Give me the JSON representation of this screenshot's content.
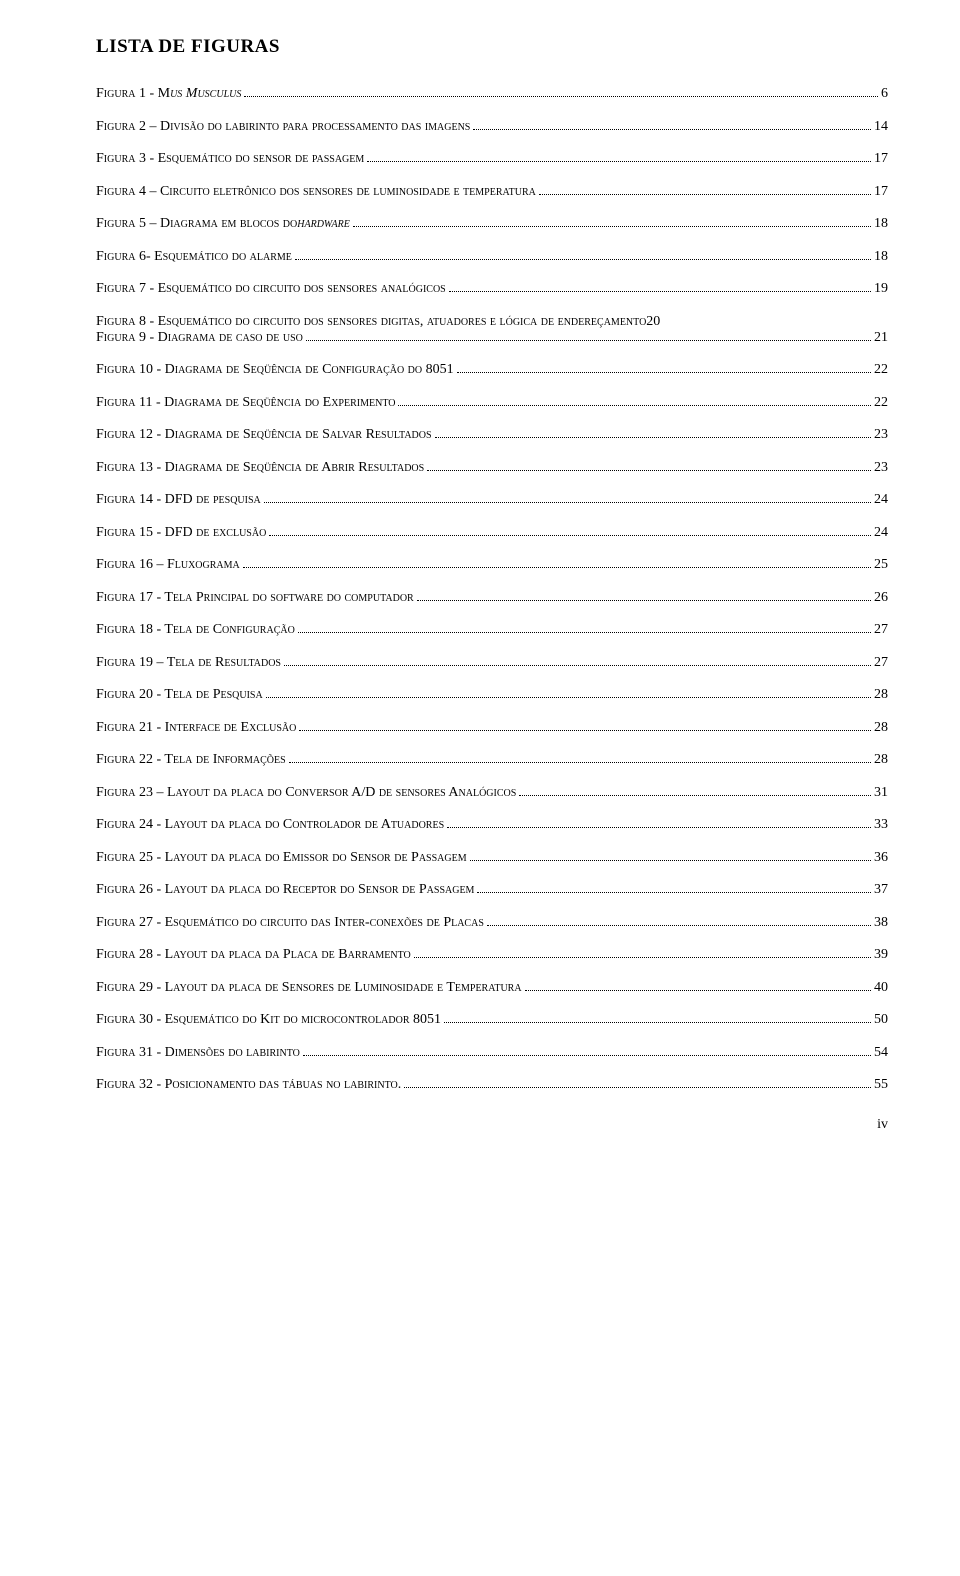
{
  "title": "LISTA DE FIGURAS",
  "entries": [
    {
      "pre": "F",
      "sc": "igura 1 - M",
      "sc2": "us Musculus",
      "ital": true,
      "page": "6"
    },
    {
      "pre": "F",
      "sc": "igura 2 – Divisão do labirinto para processamento das imagens",
      "page": "14"
    },
    {
      "pre": "F",
      "sc": "igura 3 - Esquemático do sensor de passagem",
      "page": "17"
    },
    {
      "pre": "F",
      "sc": "igura 4 – Circuito eletrônico dos sensores de luminosidade e temperatura",
      "page": "17"
    },
    {
      "pre": "F",
      "sc": "igura 5 – Diagrama em blocos do ",
      "sc2": "hardware",
      "ital": true,
      "page": "18"
    },
    {
      "pre": "F",
      "sc": "igura 6- Esquemático do alarme",
      "page": "18"
    },
    {
      "pre": "F",
      "sc": "igura 7 - Esquemático do circuito dos sensores analógicos",
      "page": "19"
    },
    {
      "wrap": true,
      "line1_pre": "F",
      "line1_sc": "igura 8 - Esquemático do circuito dos sensores digitas, atuadores e lógica de endereçamento",
      "line1_page": "20",
      "line2_pre": "F",
      "line2_sc": "igura 9 - Diagrama de caso de uso",
      "line2_page": "21"
    },
    {
      "pre": "F",
      "sc": "igura 10 - Diagrama de Seqüência de Configuração do 8051",
      "page": "22"
    },
    {
      "pre": "F",
      "sc": "igura 11 - Diagrama de Seqüência do Experimento",
      "page": "22"
    },
    {
      "pre": "F",
      "sc": "igura 12 - Diagrama de Seqüência de Salvar Resultados",
      "page": "23"
    },
    {
      "pre": "F",
      "sc": "igura 13 - Diagrama de Seqüência de Abrir Resultados",
      "page": "23"
    },
    {
      "pre": "F",
      "sc": "igura 14 - DFD de pesquisa",
      "page": "24"
    },
    {
      "pre": "F",
      "sc": "igura 15 - DFD de exclusão",
      "page": "24"
    },
    {
      "pre": "F",
      "sc": "igura 16 – Fluxograma",
      "page": "25"
    },
    {
      "pre": "F",
      "sc": "igura 17 - Tela Principal do software do computador",
      "page": "26"
    },
    {
      "pre": "F",
      "sc": "igura 18 - Tela de Configuração",
      "page": "27"
    },
    {
      "pre": "F",
      "sc": "igura 19 – Tela de Resultados",
      "page": "27"
    },
    {
      "pre": "F",
      "sc": "igura 20 - Tela de Pesquisa",
      "page": "28"
    },
    {
      "pre": "F",
      "sc": "igura 21 - Interface de Exclusão",
      "page": "28"
    },
    {
      "pre": "F",
      "sc": "igura 22 - Tela de Informações",
      "page": "28"
    },
    {
      "pre": "F",
      "sc": "igura 23 – Layout da placa do Conversor A/D de sensores Analógicos",
      "page": "31"
    },
    {
      "pre": "F",
      "sc": "igura 24 - Layout da placa do Controlador de Atuadores",
      "page": "33"
    },
    {
      "pre": "F",
      "sc": "igura 25 - Layout da placa do Emissor do Sensor de Passagem",
      "page": "36"
    },
    {
      "pre": "F",
      "sc": "igura 26 - Layout da placa do Receptor do Sensor de Passagem",
      "page": "37"
    },
    {
      "pre": "F",
      "sc": "igura 27 - Esquemático do circuito das Inter-conexões de Placas",
      "page": "38"
    },
    {
      "pre": "F",
      "sc": "igura 28 - Layout da placa da Placa de Barramento",
      "page": "39"
    },
    {
      "pre": "F",
      "sc": "igura 29 - Layout da placa de Sensores de Luminosidade e Temperatura",
      "page": "40"
    },
    {
      "pre": "F",
      "sc": "igura 30 - Esquemático do Kit do microcontrolador 8051",
      "page": "50"
    },
    {
      "pre": "F",
      "sc": "igura 31 - Dimensões do labirinto",
      "page": "54"
    },
    {
      "pre": "F",
      "sc": "igura 32 - Posicionamento das tábuas no labirinto.",
      "page": "55"
    }
  ],
  "page_number": "iv"
}
